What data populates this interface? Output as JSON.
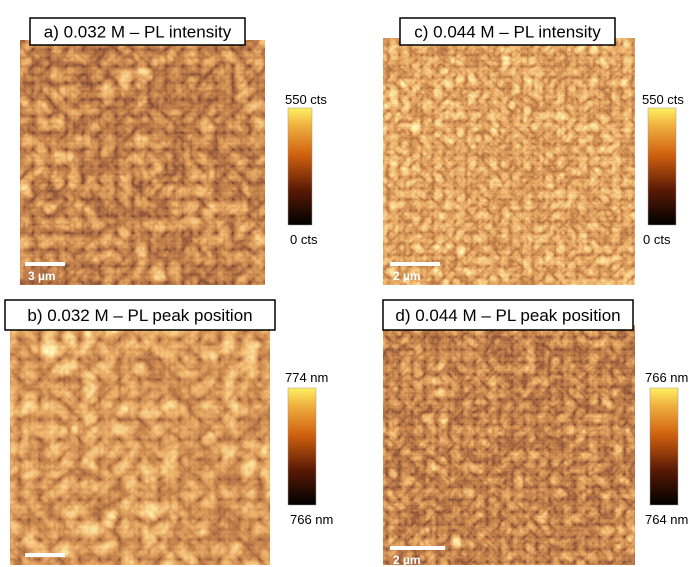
{
  "panels": [
    {
      "title": "a) 0.032 M – PL intensity",
      "colorbar_max": "550 cts",
      "colorbar_min": "0 cts",
      "scale_bar": "3 µm"
    },
    {
      "title": "c) 0.044 M – PL intensity",
      "colorbar_max": "550 cts",
      "colorbar_min": "0 cts",
      "scale_bar": "2 µm"
    },
    {
      "title": "b) 0.032 M – PL peak position",
      "colorbar_max": "774 nm",
      "colorbar_min": "766 nm"
    },
    {
      "title": "d) 0.044 M – PL peak position",
      "colorbar_max": "766 nm",
      "colorbar_min": "764 nm",
      "scale_bar": "2 µm"
    }
  ]
}
